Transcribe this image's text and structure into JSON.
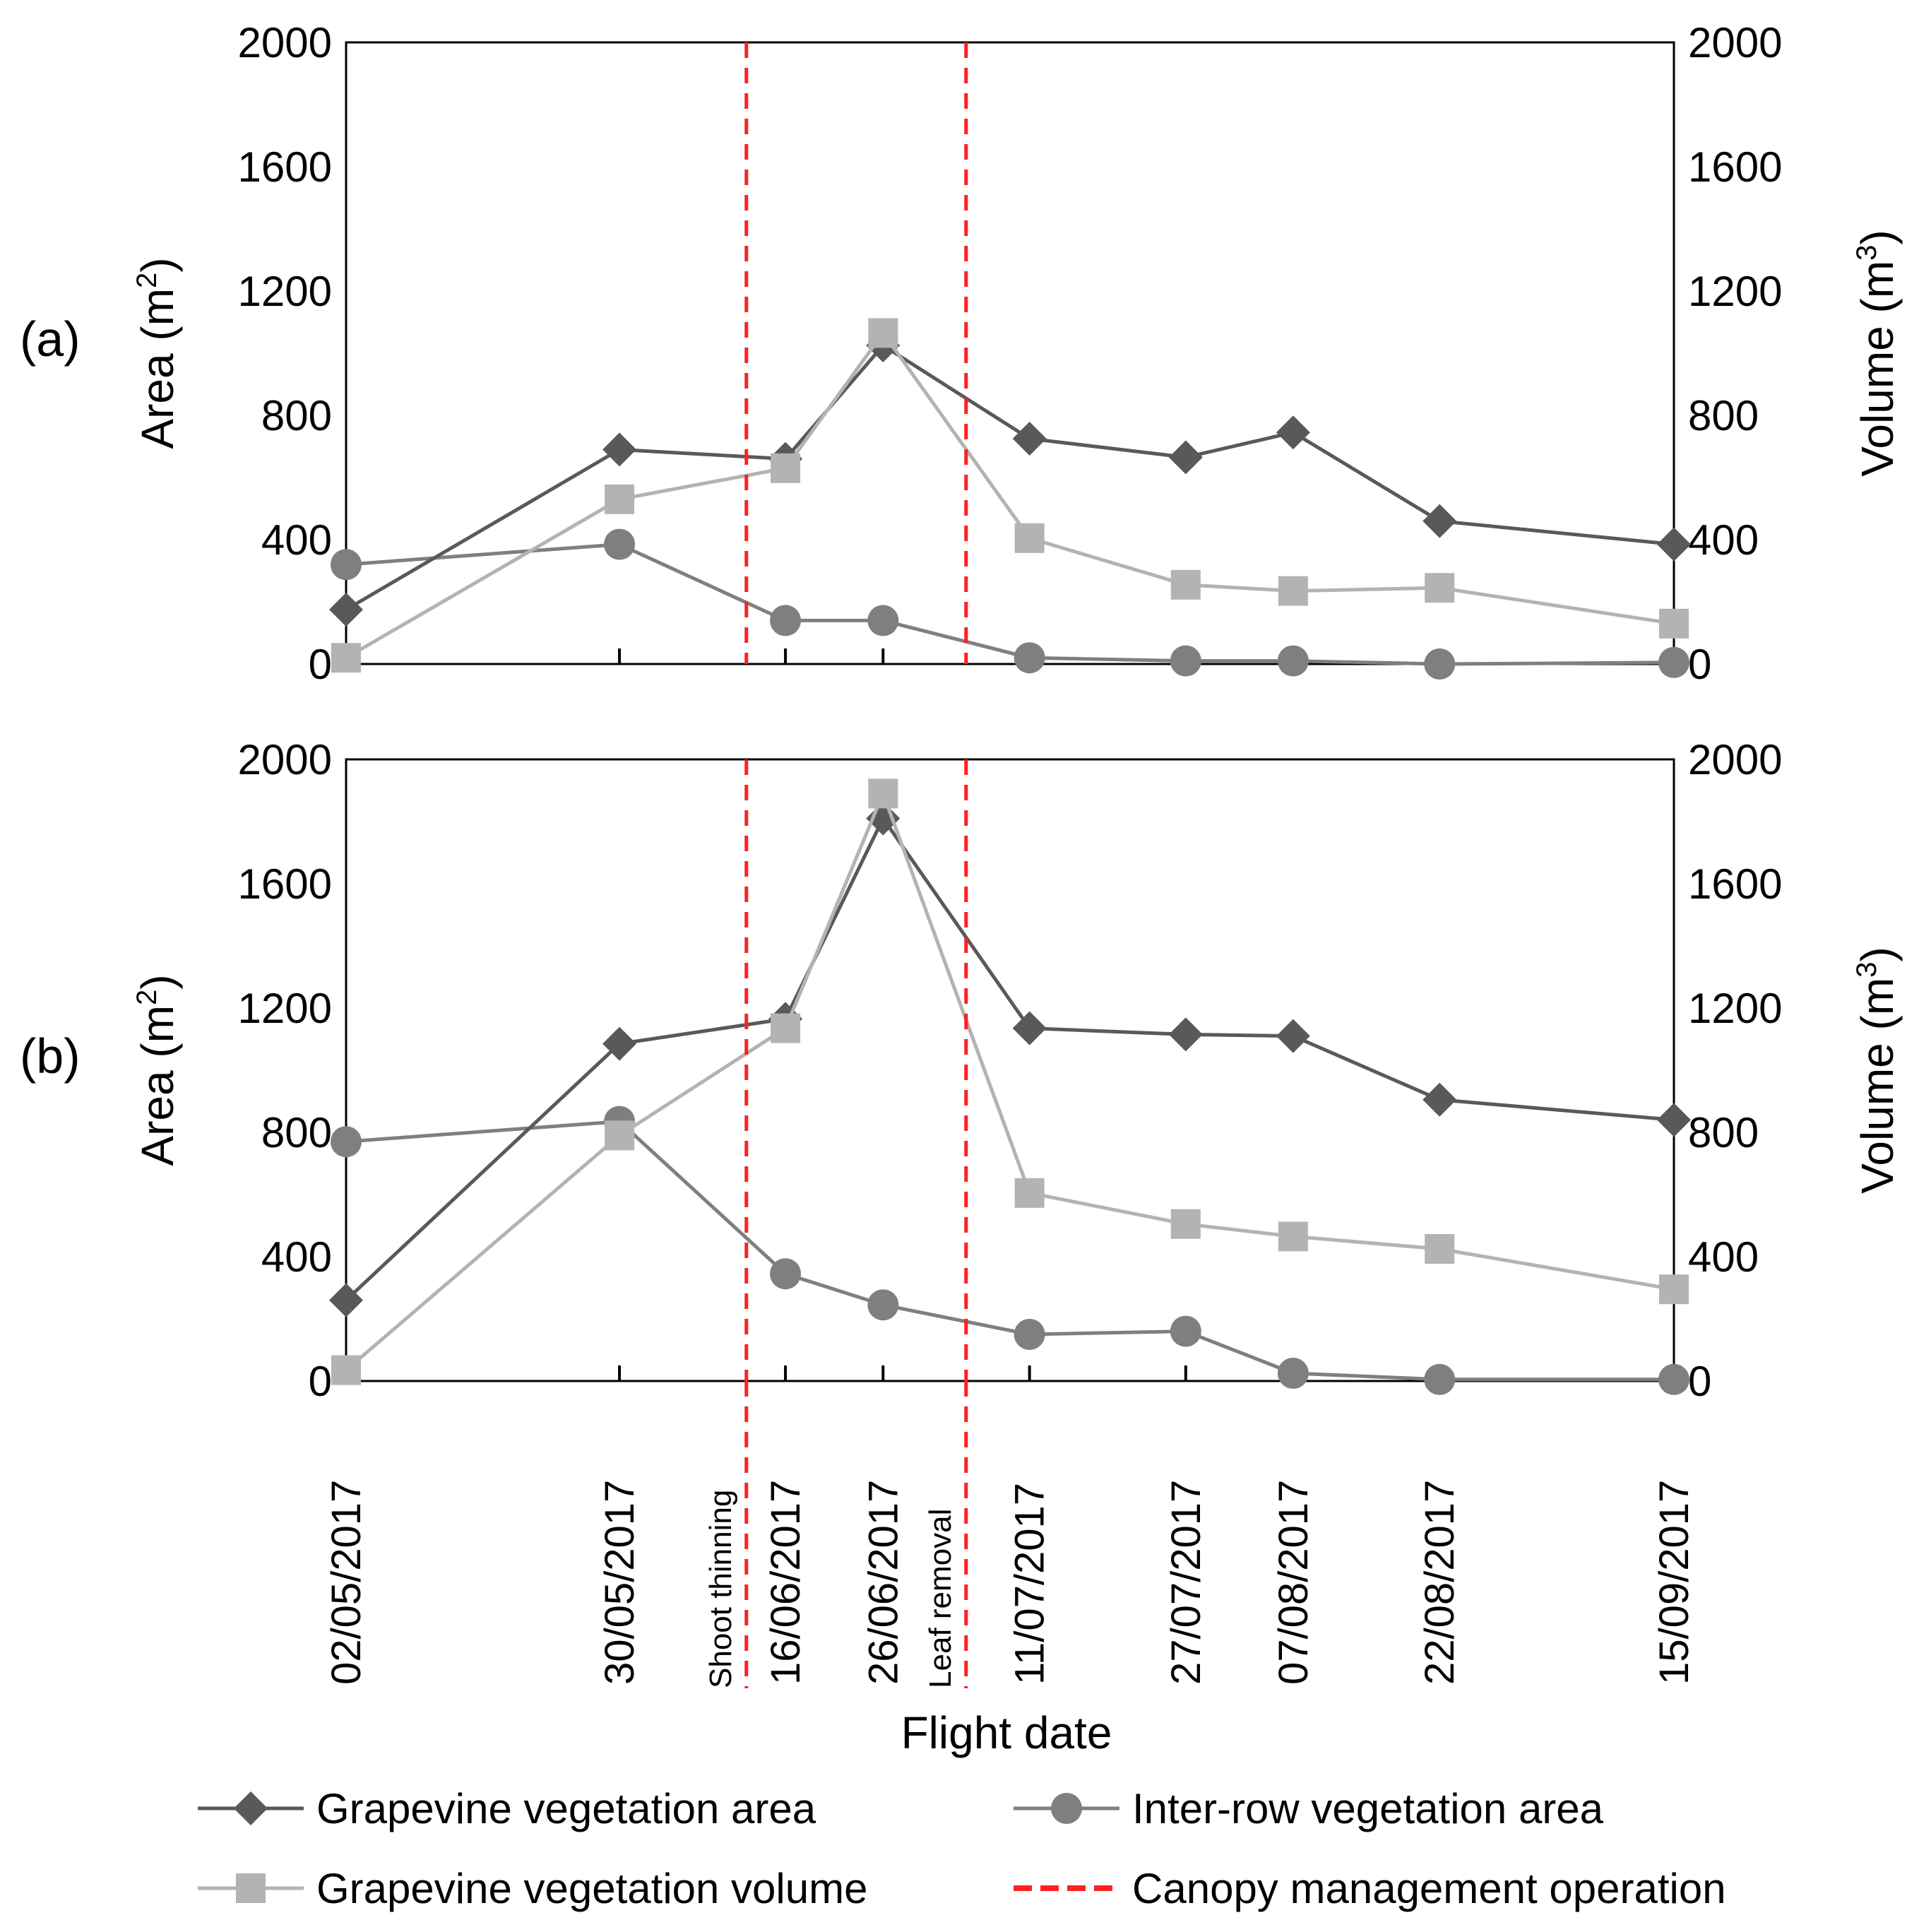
{
  "chart_data": {
    "type": "line",
    "xlabel": "Flight date",
    "categories": [
      "02/05/2017",
      "30/05/2017",
      "16/06/2017",
      "26/06/2017",
      "11/07/2017",
      "27/07/2017",
      "07/08/2017",
      "22/08/2017",
      "15/09/2017"
    ],
    "day_offsets": [
      0,
      28,
      45,
      55,
      70,
      86,
      97,
      112,
      136
    ],
    "operations": [
      {
        "label": "Shoot thinning",
        "day_offset": 41
      },
      {
        "label": "Leaf removal",
        "day_offset": 63.5
      }
    ],
    "legend": [
      {
        "key": "area_grapevine",
        "label": "Grapevine vegetation area"
      },
      {
        "key": "area_interrow",
        "label": "Inter-row vegetation area"
      },
      {
        "key": "volume_grapevine",
        "label": "Grapevine vegetation volume"
      },
      {
        "key": "operation",
        "label": "Canopy management operation"
      }
    ],
    "colors": {
      "area_grapevine": "#595959",
      "area_interrow": "#7f7f7f",
      "volume_grapevine": "#b3b3b3",
      "operation": "#ff2020"
    },
    "panels": [
      {
        "label": "(a)",
        "ylabel_left": "Area (m",
        "ylabel_right": "Volume (m",
        "ylabel_left_sup": "2",
        "ylabel_right_sup": "3",
        "ylabel_close": ")",
        "ylim": [
          0,
          2000
        ],
        "yticks": [
          0,
          400,
          800,
          1200,
          1600,
          2000
        ],
        "series": [
          {
            "key": "area_grapevine",
            "name": "Grapevine vegetation area",
            "marker": "diamond",
            "values": [
              175,
              690,
              660,
              1025,
              725,
              665,
              745,
              460,
              385
            ]
          },
          {
            "key": "area_interrow",
            "name": "Inter-row vegetation area",
            "marker": "circle",
            "values": [
              320,
              385,
              140,
              140,
              20,
              10,
              10,
              0,
              5
            ]
          },
          {
            "key": "volume_grapevine",
            "name": "Grapevine vegetation volume",
            "marker": "square",
            "values": [
              20,
              530,
              630,
              1065,
              405,
              255,
              235,
              245,
              130
            ]
          }
        ]
      },
      {
        "label": "(b)",
        "ylabel_left": "Area (m",
        "ylabel_right": "Volume (m",
        "ylabel_left_sup": "2",
        "ylabel_right_sup": "3",
        "ylabel_close": ")",
        "ylim": [
          0,
          2000
        ],
        "yticks": [
          0,
          400,
          800,
          1200,
          1600,
          2000
        ],
        "series": [
          {
            "key": "area_grapevine",
            "name": "Grapevine vegetation area",
            "marker": "diamond",
            "values": [
              260,
              1085,
              1165,
              1810,
              1135,
              1115,
              1110,
              905,
              840
            ]
          },
          {
            "key": "area_interrow",
            "name": "Inter-row vegetation area",
            "marker": "circle",
            "values": [
              770,
              835,
              345,
              245,
              150,
              160,
              25,
              5,
              5
            ]
          },
          {
            "key": "volume_grapevine",
            "name": "Grapevine vegetation volume",
            "marker": "square",
            "values": [
              35,
              790,
              1135,
              1890,
              605,
              505,
              465,
              425,
              295
            ]
          }
        ]
      }
    ]
  }
}
